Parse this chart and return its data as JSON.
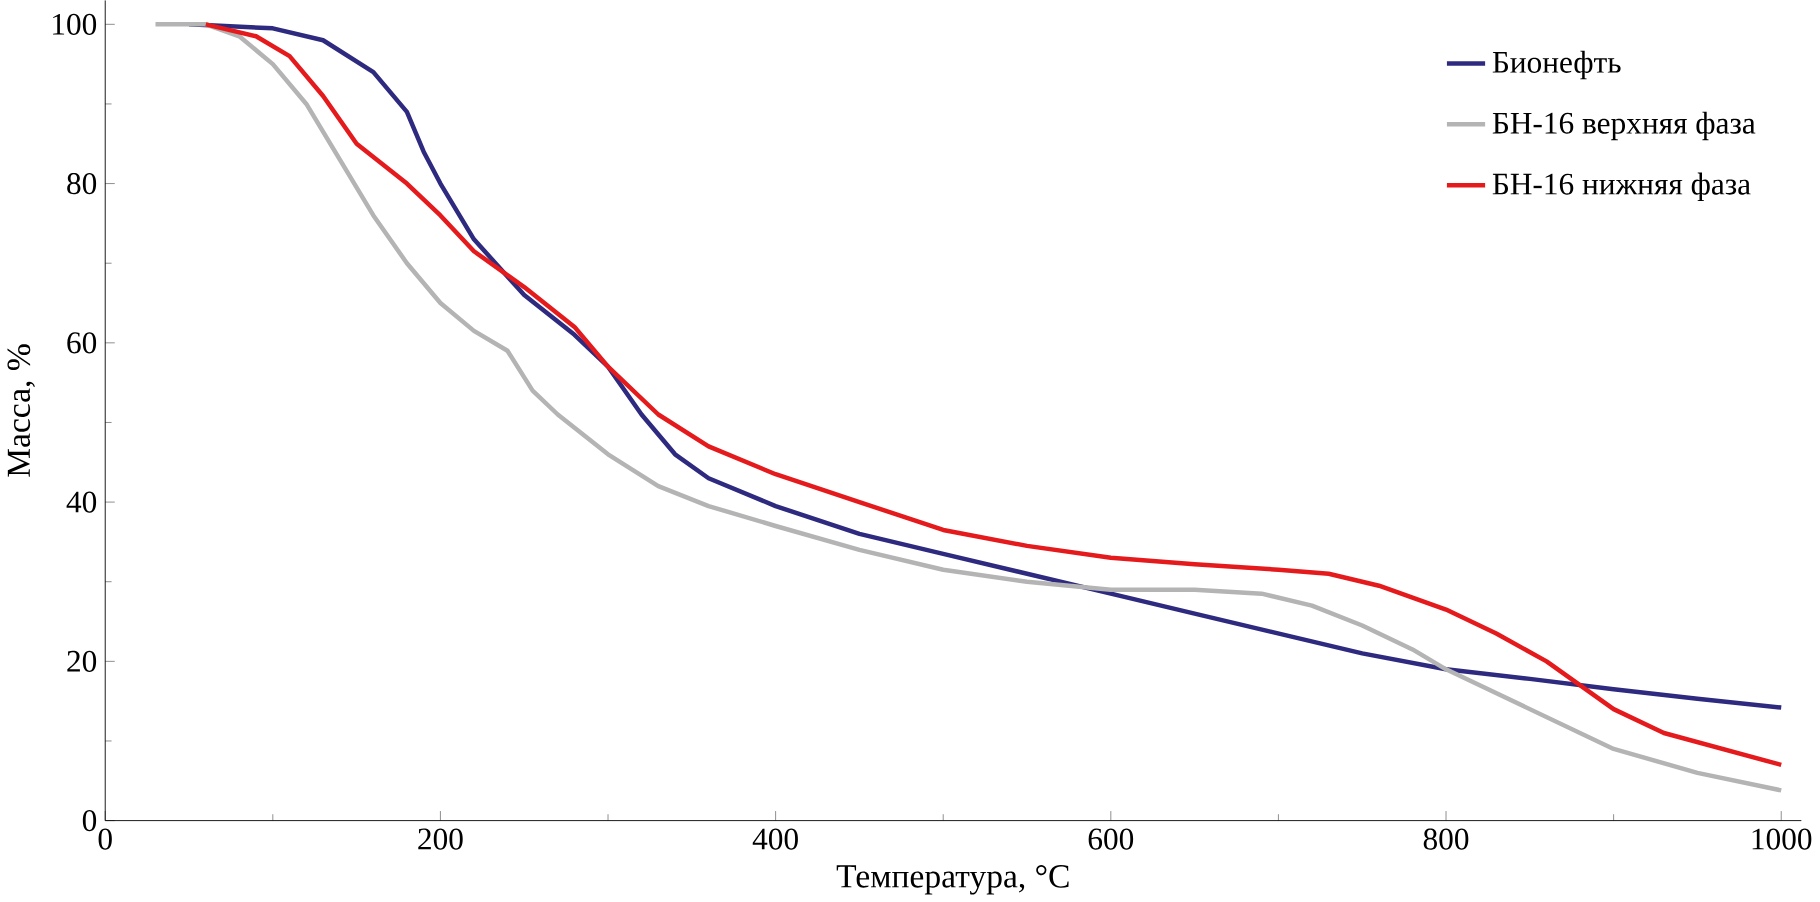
{
  "chart_data": {
    "type": "line",
    "xlabel": "Температура, °C",
    "ylabel": "Масса, %",
    "xlim": [
      0,
      1012
    ],
    "ylim": [
      0,
      103
    ],
    "xticks": [
      0,
      200,
      400,
      600,
      800,
      1000
    ],
    "yticks": [
      0,
      20,
      40,
      60,
      80,
      100
    ],
    "legend": "top right",
    "grid": false,
    "series": [
      {
        "name": "Бионефть",
        "color": "#2e2a7f",
        "x": [
          50,
          100,
          130,
          160,
          180,
          190,
          200,
          220,
          250,
          280,
          300,
          320,
          340,
          360,
          400,
          450,
          500,
          550,
          600,
          650,
          700,
          750,
          800,
          850,
          900,
          950,
          1000
        ],
        "values": [
          100,
          99.5,
          98,
          94,
          89,
          84,
          80,
          73,
          66,
          61,
          57,
          51,
          46,
          43,
          39.5,
          36,
          33.5,
          31,
          28.5,
          26,
          23.5,
          21,
          19,
          17.8,
          16.5,
          15.3,
          14.2
        ]
      },
      {
        "name": "БН-16 верхняя фаза",
        "color": "#b4b4b4",
        "x": [
          30,
          60,
          80,
          100,
          120,
          140,
          160,
          180,
          200,
          220,
          240,
          255,
          270,
          300,
          330,
          360,
          400,
          450,
          500,
          550,
          600,
          650,
          690,
          720,
          750,
          780,
          800,
          850,
          900,
          950,
          1000
        ],
        "values": [
          100,
          100,
          98.5,
          95,
          90,
          83,
          76,
          70,
          65,
          61.5,
          59,
          54,
          51,
          46,
          42,
          39.5,
          37,
          34,
          31.5,
          30,
          29,
          29,
          28.5,
          27,
          24.5,
          21.5,
          19,
          14,
          9,
          6,
          3.8
        ]
      },
      {
        "name": "БН-16 нижняя фаза",
        "color": "#e41a1c",
        "x": [
          60,
          90,
          110,
          130,
          150,
          180,
          200,
          220,
          250,
          280,
          300,
          330,
          360,
          400,
          450,
          500,
          550,
          600,
          650,
          700,
          730,
          760,
          800,
          830,
          860,
          880,
          900,
          930,
          1000
        ],
        "values": [
          100,
          98.5,
          96,
          91,
          85,
          80,
          76,
          71.5,
          67,
          62,
          57,
          51,
          47,
          43.5,
          40,
          36.5,
          34.5,
          33,
          32.2,
          31.5,
          31,
          29.5,
          26.5,
          23.5,
          20,
          17,
          14,
          11,
          7
        ]
      }
    ]
  }
}
